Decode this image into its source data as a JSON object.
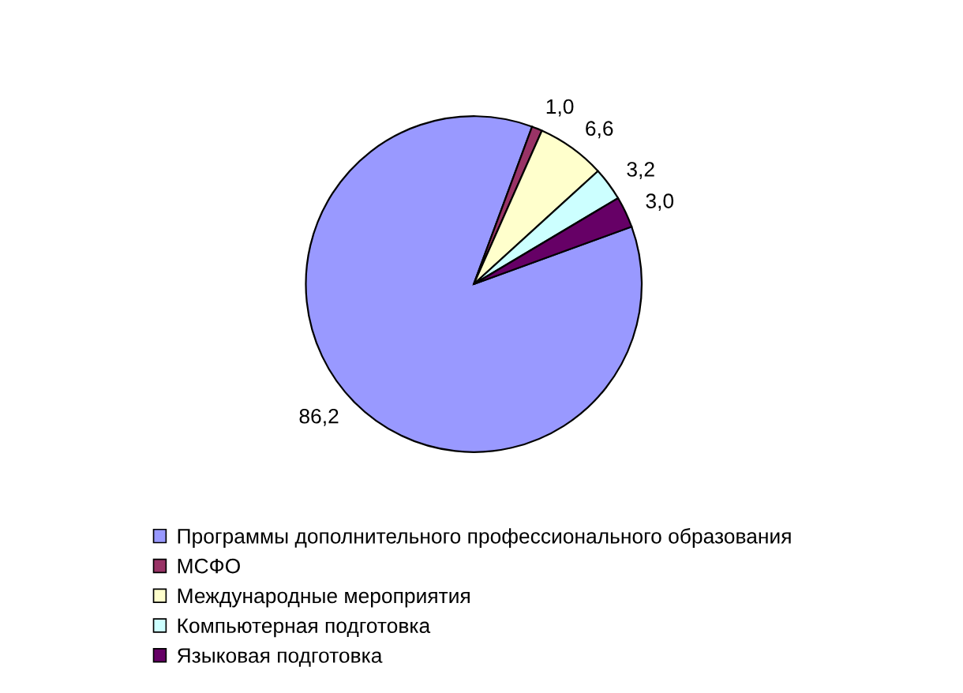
{
  "chart_data": {
    "type": "pie",
    "categories": [
      "Программы дополнительного профессионального образования",
      "МСФО",
      "Международные мероприятия",
      "Компьютерная подготовка",
      "Языковая подготовка"
    ],
    "values": [
      86.2,
      1.0,
      6.6,
      3.2,
      3.0
    ],
    "value_labels": [
      "86,2",
      "1,0",
      "6,6",
      "3,2",
      "3,0"
    ],
    "colors": [
      "#9999ff",
      "#993366",
      "#ffffcc",
      "#ccffff",
      "#660066"
    ],
    "legend": "bottom"
  }
}
